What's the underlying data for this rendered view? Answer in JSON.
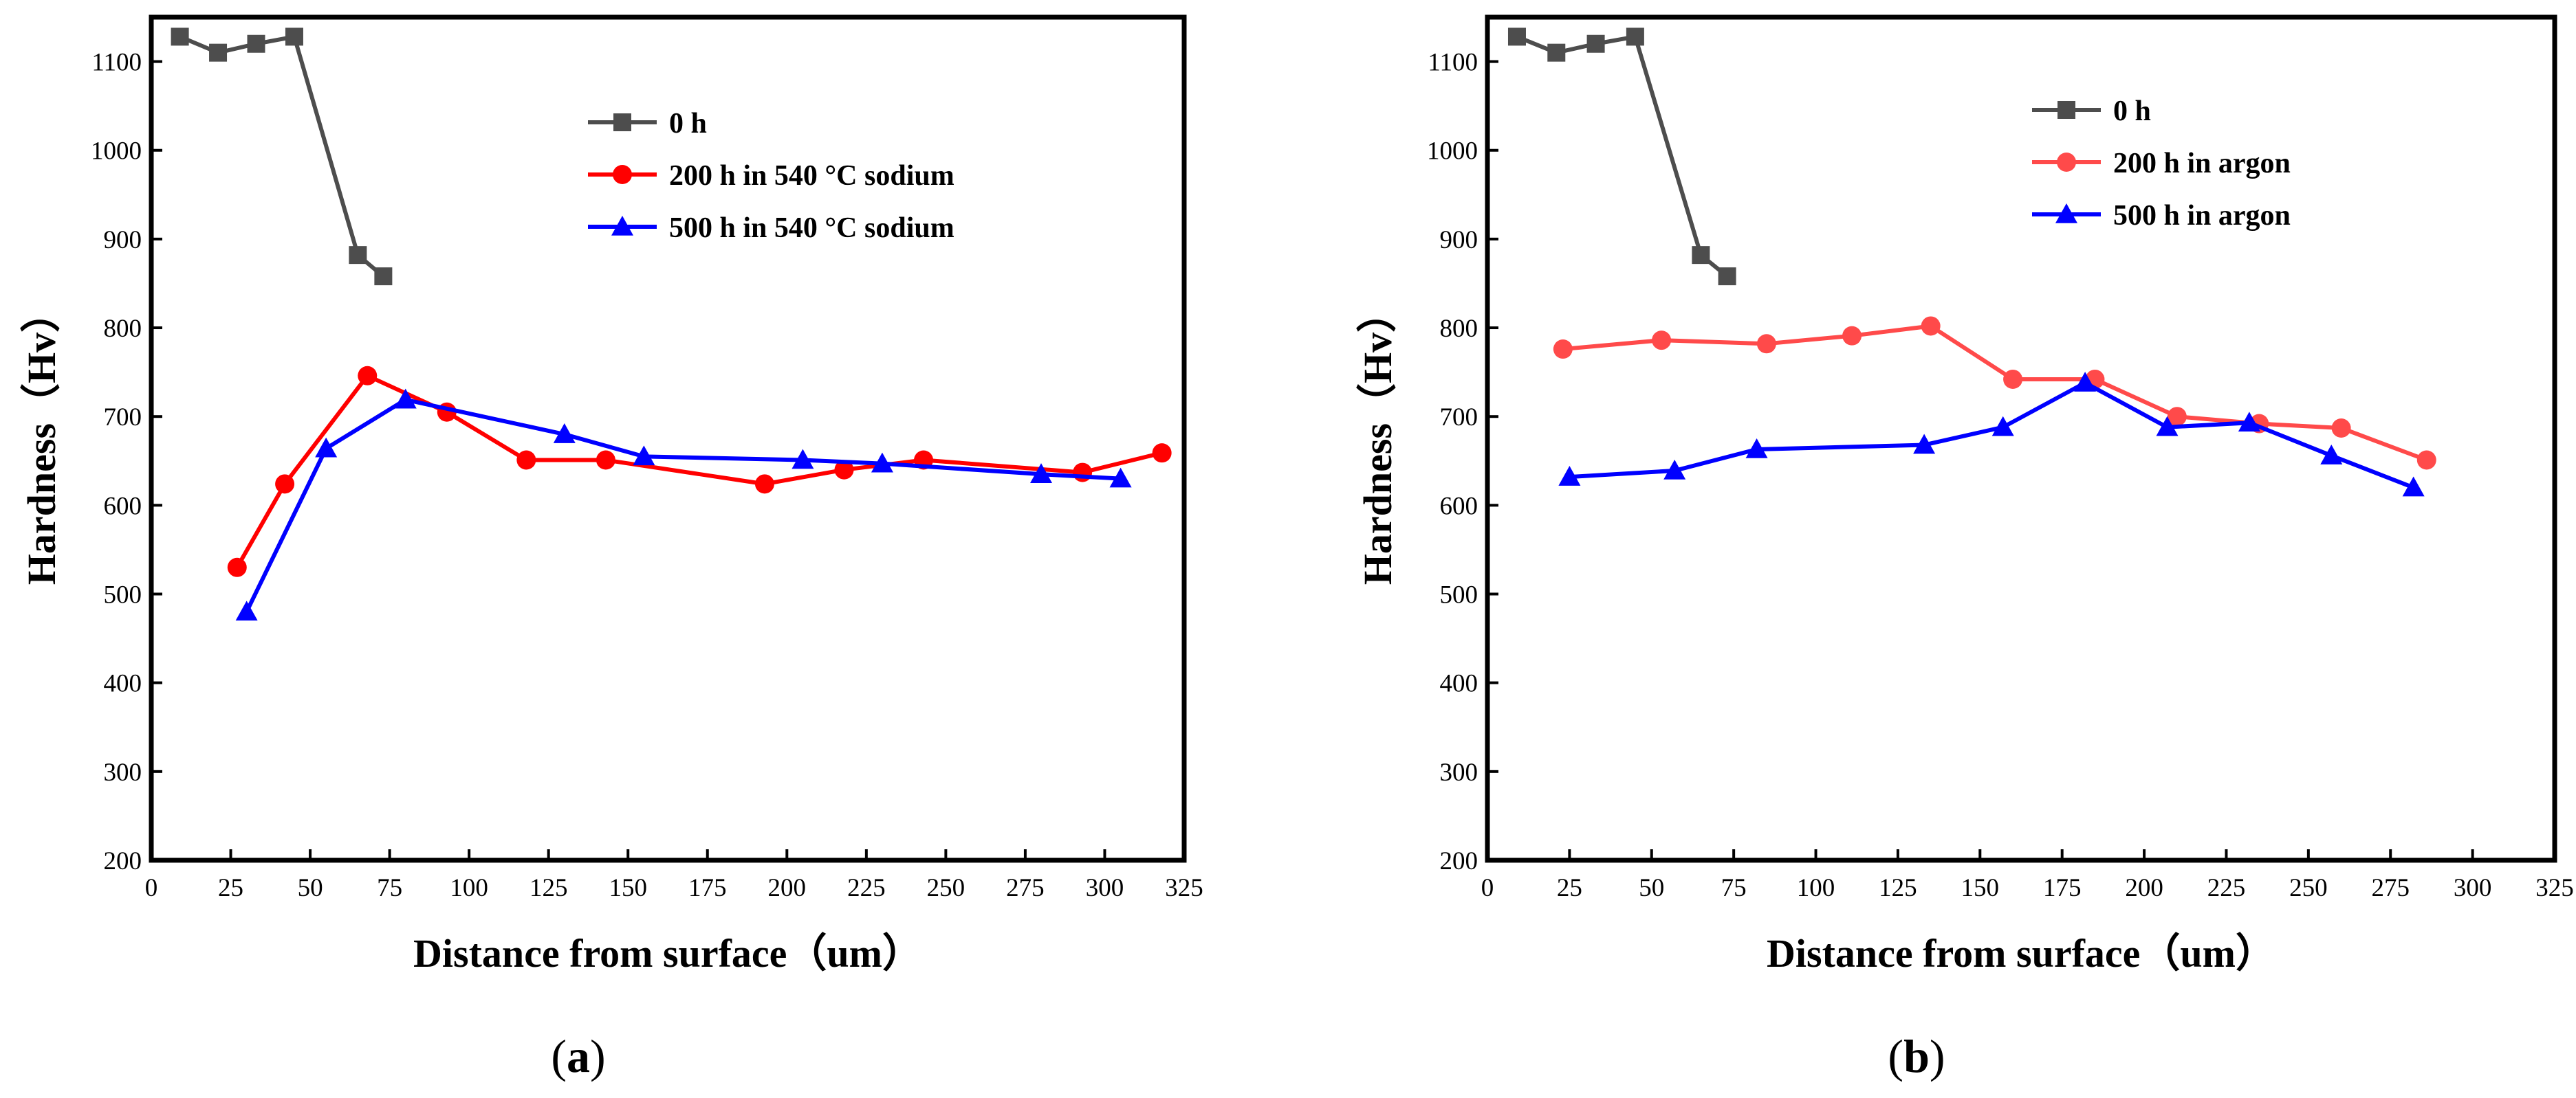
{
  "chart_data": [
    {
      "type": "line",
      "panel_label": {
        "open": "(",
        "letter": "a",
        "close": ")"
      },
      "xlabel": "Distance from surface（um）",
      "ylabel": "Hardness（Hv）",
      "xlim": [
        0,
        325
      ],
      "ylim": [
        200,
        1150
      ],
      "xticks": [
        0,
        25,
        50,
        75,
        100,
        125,
        150,
        175,
        200,
        225,
        250,
        275,
        300,
        325
      ],
      "yticks": [
        200,
        300,
        400,
        500,
        600,
        700,
        800,
        900,
        1000,
        1100
      ],
      "grid": false,
      "legend_position": "top-center",
      "series": [
        {
          "name": "0 h",
          "color": "#4d4d4d",
          "marker": "square",
          "x": [
            9,
            21,
            33,
            45,
            65,
            73
          ],
          "y": [
            1128,
            1110,
            1120,
            1128,
            882,
            858
          ]
        },
        {
          "name": "200 h in 540 °C sodium",
          "color": "#ff0000",
          "marker": "circle",
          "x": [
            27,
            42,
            68,
            93,
            118,
            143,
            193,
            218,
            243,
            293,
            318
          ],
          "y": [
            530,
            624,
            746,
            705,
            651,
            651,
            624,
            640,
            651,
            637,
            659
          ]
        },
        {
          "name": "500 h in 540 °C sodium",
          "color": "#0000ff",
          "marker": "triangle",
          "x": [
            30,
            55,
            80,
            130,
            155,
            205,
            230,
            280,
            305
          ],
          "y": [
            480,
            664,
            719,
            680,
            655,
            651,
            647,
            635,
            630
          ]
        }
      ]
    },
    {
      "type": "line",
      "panel_label": {
        "open": "(",
        "letter": "b",
        "close": ")"
      },
      "xlabel": "Distance from surface（um）",
      "ylabel": "Hardness（Hv）",
      "xlim": [
        0,
        325
      ],
      "ylim": [
        200,
        1150
      ],
      "xticks": [
        0,
        25,
        50,
        75,
        100,
        125,
        150,
        175,
        200,
        225,
        250,
        275,
        300,
        325
      ],
      "yticks": [
        200,
        300,
        400,
        500,
        600,
        700,
        800,
        900,
        1000,
        1100
      ],
      "grid": false,
      "legend_position": "top-center",
      "series": [
        {
          "name": "0 h",
          "color": "#4d4d4d",
          "marker": "square",
          "x": [
            9,
            21,
            33,
            45,
            65,
            73
          ],
          "y": [
            1128,
            1110,
            1120,
            1128,
            882,
            858
          ]
        },
        {
          "name": "200 h in argon",
          "color": "#ff4a4a",
          "marker": "circle",
          "x": [
            23,
            53,
            85,
            111,
            135,
            160,
            185,
            210,
            235,
            260,
            286
          ],
          "y": [
            776,
            786,
            782,
            791,
            802,
            742,
            742,
            700,
            692,
            687,
            651
          ]
        },
        {
          "name": "500 h in argon",
          "color": "#0000ff",
          "marker": "triangle",
          "x": [
            25,
            57,
            82,
            133,
            157,
            182,
            207,
            232,
            257,
            282
          ],
          "y": [
            632,
            639,
            663,
            668,
            688,
            738,
            688,
            693,
            656,
            620
          ]
        }
      ]
    }
  ]
}
